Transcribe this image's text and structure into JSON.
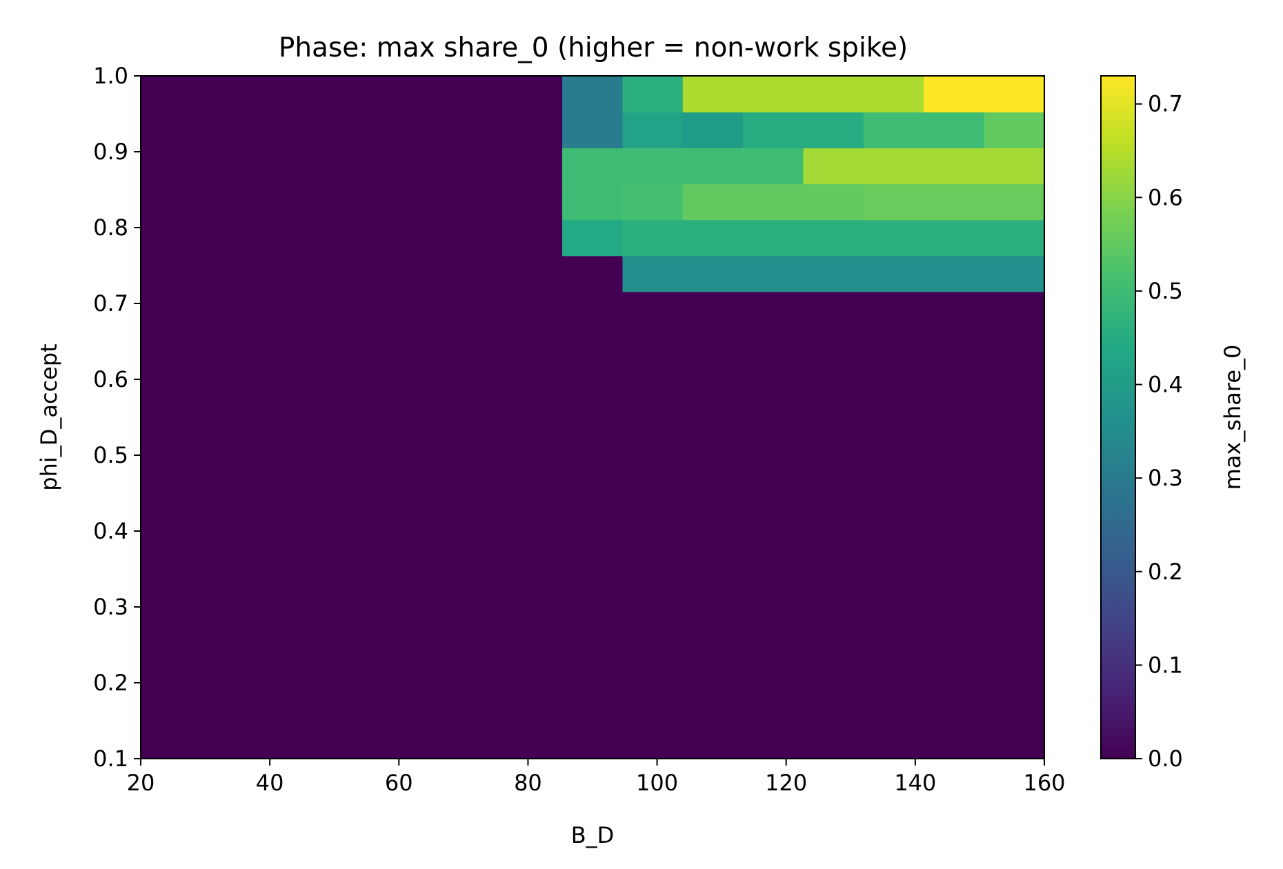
{
  "chart_data": {
    "type": "heatmap",
    "title": "Phase: max share_0 (higher = non-work spike)",
    "xlabel": "B_D",
    "ylabel": "phi_D_accept",
    "xlim": [
      20,
      160
    ],
    "ylim": [
      0.1,
      1.0
    ],
    "x_ticks": [
      "20",
      "40",
      "60",
      "80",
      "100",
      "120",
      "140",
      "160"
    ],
    "y_ticks": [
      "0.1",
      "0.2",
      "0.3",
      "0.4",
      "0.5",
      "0.6",
      "0.7",
      "0.8",
      "0.9",
      "1.0"
    ],
    "x_edges": [
      20,
      29.33,
      38.67,
      48,
      57.33,
      66.67,
      76,
      85.33,
      94.67,
      104,
      113.33,
      122.67,
      132,
      141.33,
      150.67,
      160
    ],
    "y_edges": [
      0.1,
      0.1474,
      0.1947,
      0.2421,
      0.2895,
      0.3368,
      0.3842,
      0.4316,
      0.4789,
      0.5263,
      0.5737,
      0.6211,
      0.6684,
      0.7158,
      0.7632,
      0.8105,
      0.8579,
      0.9053,
      0.9526,
      1.0
    ],
    "values": [
      [
        0,
        0,
        0,
        0,
        0,
        0,
        0,
        0,
        0,
        0,
        0,
        0,
        0,
        0,
        0
      ],
      [
        0,
        0,
        0,
        0,
        0,
        0,
        0,
        0,
        0,
        0,
        0,
        0,
        0,
        0,
        0
      ],
      [
        0,
        0,
        0,
        0,
        0,
        0,
        0,
        0,
        0,
        0,
        0,
        0,
        0,
        0,
        0
      ],
      [
        0,
        0,
        0,
        0,
        0,
        0,
        0,
        0,
        0,
        0,
        0,
        0,
        0,
        0,
        0
      ],
      [
        0,
        0,
        0,
        0,
        0,
        0,
        0,
        0,
        0,
        0,
        0,
        0,
        0,
        0,
        0
      ],
      [
        0,
        0,
        0,
        0,
        0,
        0,
        0,
        0,
        0,
        0,
        0,
        0,
        0,
        0,
        0
      ],
      [
        0,
        0,
        0,
        0,
        0,
        0,
        0,
        0,
        0,
        0,
        0,
        0,
        0,
        0,
        0
      ],
      [
        0,
        0,
        0,
        0,
        0,
        0,
        0,
        0,
        0,
        0,
        0,
        0,
        0,
        0,
        0
      ],
      [
        0,
        0,
        0,
        0,
        0,
        0,
        0,
        0,
        0,
        0,
        0,
        0,
        0,
        0,
        0
      ],
      [
        0,
        0,
        0,
        0,
        0,
        0,
        0,
        0,
        0,
        0,
        0,
        0,
        0,
        0,
        0
      ],
      [
        0,
        0,
        0,
        0,
        0,
        0,
        0,
        0,
        0,
        0,
        0,
        0,
        0,
        0,
        0
      ],
      [
        0,
        0,
        0,
        0,
        0,
        0,
        0,
        0,
        0,
        0,
        0,
        0,
        0,
        0,
        0
      ],
      [
        0,
        0,
        0,
        0,
        0,
        0,
        0,
        0,
        0,
        0,
        0,
        0,
        0,
        0,
        0
      ],
      [
        0,
        0,
        0,
        0,
        0,
        0,
        0,
        0,
        0.36,
        0.36,
        0.36,
        0.36,
        0.36,
        0.36,
        0.36
      ],
      [
        0,
        0,
        0,
        0,
        0,
        0,
        0,
        0.44,
        0.46,
        0.46,
        0.46,
        0.46,
        0.46,
        0.46,
        0.46
      ],
      [
        0,
        0,
        0,
        0,
        0,
        0,
        0,
        0.5,
        0.51,
        0.55,
        0.55,
        0.55,
        0.56,
        0.56,
        0.56
      ],
      [
        0,
        0,
        0,
        0,
        0,
        0,
        0,
        0.5,
        0.5,
        0.5,
        0.5,
        0.63,
        0.63,
        0.63,
        0.63
      ],
      [
        0,
        0,
        0,
        0,
        0,
        0,
        0,
        0.3,
        0.42,
        0.4,
        0.45,
        0.45,
        0.5,
        0.5,
        0.55
      ],
      [
        0,
        0,
        0,
        0,
        0,
        0,
        0,
        0.3,
        0.46,
        0.64,
        0.64,
        0.64,
        0.64,
        0.73,
        0.73
      ]
    ],
    "colorbar": {
      "label": "max_share_0",
      "range": [
        0,
        0.73
      ],
      "ticks": [
        "0.0",
        "0.1",
        "0.2",
        "0.3",
        "0.4",
        "0.5",
        "0.6",
        "0.7"
      ],
      "colormap": "viridis"
    },
    "grid": false
  }
}
